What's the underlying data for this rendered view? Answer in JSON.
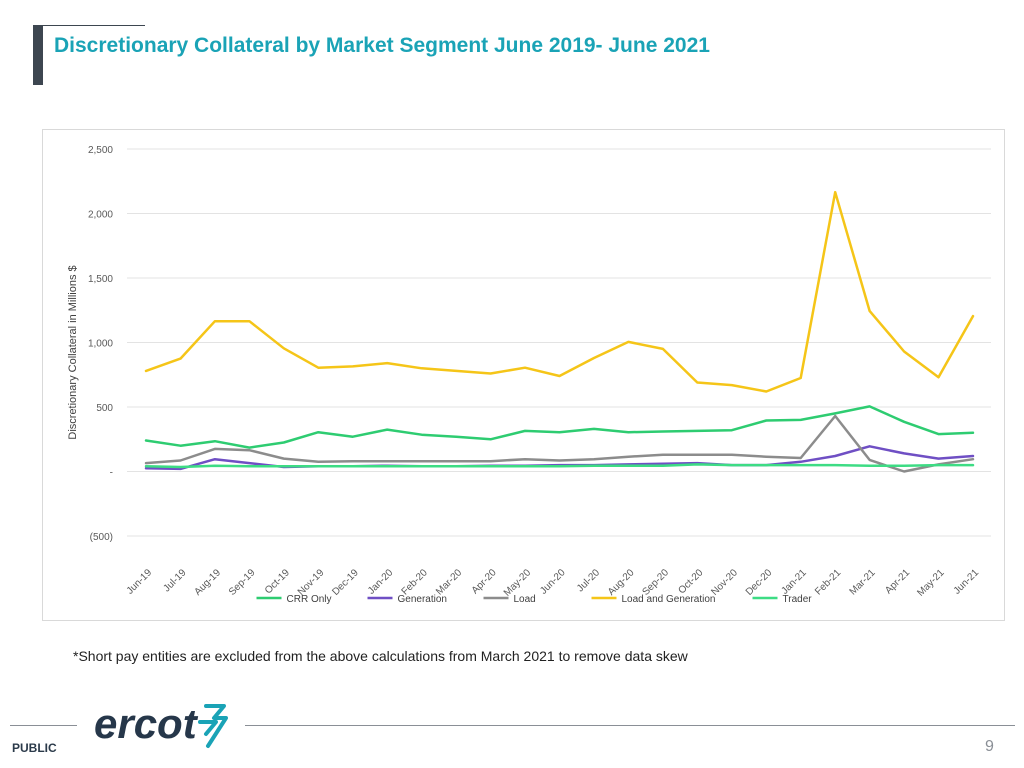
{
  "slide": {
    "title": "Discretionary Collateral by Market Segment June 2019- June 2021",
    "footnote": "*Short pay entities are excluded from the above calculations from March 2021 to remove data skew",
    "footer_label": "PUBLIC",
    "page_number": "9",
    "logo_text": "ercot",
    "colors": {
      "title": "#1aa3b6",
      "accent_bar": "#3d4650",
      "logo": "#26374a",
      "logo_mark": "#1aa3b6"
    }
  },
  "chart_data": {
    "type": "line",
    "ylabel": "Discretionary Collateral in Millions $",
    "ylim": [
      -500,
      2500
    ],
    "yticks": [
      {
        "value": 2500,
        "label": "2,500"
      },
      {
        "value": 2000,
        "label": "2,000"
      },
      {
        "value": 1500,
        "label": "1,500"
      },
      {
        "value": 1000,
        "label": "1,000"
      },
      {
        "value": 500,
        "label": "500"
      },
      {
        "value": 0,
        "label": "-"
      },
      {
        "value": -500,
        "label": "(500)"
      }
    ],
    "grid": true,
    "legend_position": "bottom",
    "categories": [
      "Jun-19",
      "Jul-19",
      "Aug-19",
      "Sep-19",
      "Oct-19",
      "Nov-19",
      "Dec-19",
      "Jan-20",
      "Feb-20",
      "Mar-20",
      "Apr-20",
      "May-20",
      "Jun-20",
      "Jul-20",
      "Aug-20",
      "Sep-20",
      "Oct-20",
      "Nov-20",
      "Dec-20",
      "Jan-21",
      "Feb-21",
      "Mar-21",
      "Apr-21",
      "May-21",
      "Jun-21"
    ],
    "series": [
      {
        "name": "CRR Only",
        "color": "#2ecc71",
        "values": [
          240,
          200,
          235,
          185,
          225,
          305,
          270,
          325,
          285,
          270,
          250,
          315,
          305,
          330,
          305,
          310,
          315,
          320,
          395,
          400,
          450,
          505,
          385,
          290,
          300
        ]
      },
      {
        "name": "Generation",
        "color": "#6f4fc4",
        "values": [
          25,
          20,
          95,
          65,
          35,
          40,
          40,
          45,
          40,
          40,
          45,
          45,
          50,
          50,
          55,
          60,
          65,
          50,
          50,
          75,
          120,
          195,
          140,
          100,
          120
        ]
      },
      {
        "name": "Load",
        "color": "#8c8c8c",
        "values": [
          65,
          85,
          175,
          165,
          100,
          75,
          80,
          80,
          80,
          80,
          80,
          95,
          85,
          95,
          115,
          130,
          130,
          130,
          115,
          105,
          430,
          90,
          0,
          55,
          95
        ]
      },
      {
        "name": "Load and Generation",
        "color": "#f5c518",
        "values": [
          780,
          875,
          1165,
          1165,
          955,
          805,
          815,
          840,
          800,
          780,
          760,
          805,
          740,
          880,
          1005,
          950,
          690,
          670,
          620,
          725,
          2165,
          1245,
          930,
          730,
          1205
        ]
      },
      {
        "name": "Trader",
        "color": "#3ddc84",
        "values": [
          40,
          35,
          45,
          40,
          40,
          40,
          40,
          40,
          40,
          40,
          40,
          40,
          40,
          45,
          45,
          45,
          55,
          50,
          50,
          50,
          50,
          45,
          45,
          50,
          50
        ]
      }
    ]
  }
}
